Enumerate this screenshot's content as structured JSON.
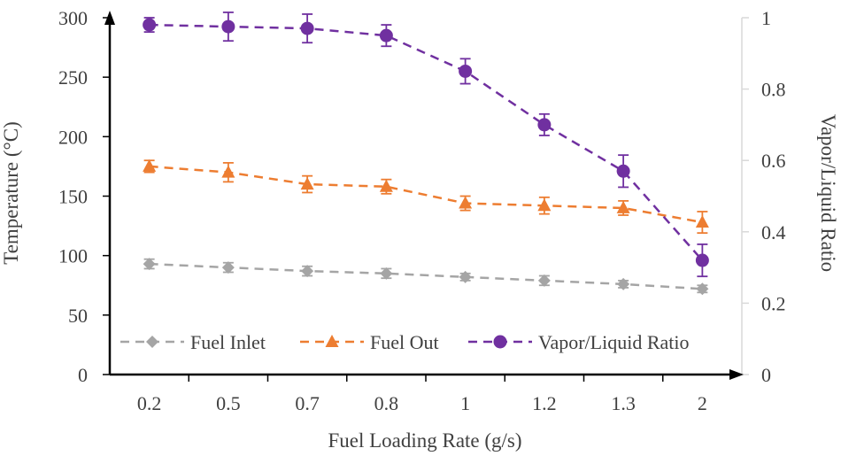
{
  "chart_data": {
    "type": "line",
    "title": "",
    "categories": [
      "0.2",
      "0.5",
      "0.7",
      "0.8",
      "1",
      "1.2",
      "1.3",
      "2"
    ],
    "xlabel": "Fuel Loading Rate (g/s)",
    "ylabel": "Temperature (°C)",
    "y2label": "Vapor/Liquid Ratio",
    "ylim": [
      0,
      300
    ],
    "yticks": [
      "0",
      "50",
      "100",
      "150",
      "200",
      "250",
      "300"
    ],
    "y2lim": [
      0,
      1
    ],
    "y2ticks": [
      "0",
      "0.2",
      "0.4",
      "0.6",
      "0.8",
      "1"
    ],
    "grid": false,
    "legend_position": "bottom-inside",
    "series": [
      {
        "name": "Fuel Inlet",
        "axis": "left",
        "marker": "diamond",
        "color": "#A5A5A5",
        "values": [
          93,
          90,
          87,
          85,
          82,
          79,
          76,
          72
        ],
        "errors": [
          4,
          4,
          4,
          4,
          3,
          4,
          3,
          3
        ]
      },
      {
        "name": "Fuel Out",
        "axis": "left",
        "marker": "triangle",
        "color": "#ED7D31",
        "values": [
          175,
          170,
          160,
          158,
          144,
          142,
          140,
          128
        ],
        "errors": [
          5,
          8,
          7,
          6,
          6,
          7,
          6,
          9
        ]
      },
      {
        "name": "Vapor/Liquid Ratio",
        "axis": "right",
        "marker": "circle",
        "color": "#7030A0",
        "values": [
          0.98,
          0.975,
          0.97,
          0.95,
          0.85,
          0.7,
          0.57,
          0.32
        ],
        "errors": [
          0.02,
          0.04,
          0.04,
          0.03,
          0.035,
          0.03,
          0.045,
          0.045
        ]
      }
    ]
  }
}
